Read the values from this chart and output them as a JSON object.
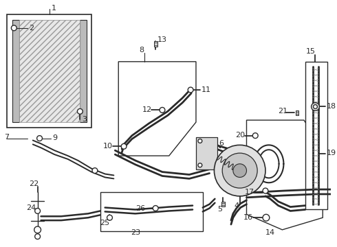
{
  "bg_color": "#ffffff",
  "lc": "#2a2a2a",
  "fig_w": 4.9,
  "fig_h": 3.6,
  "dpi": 100
}
